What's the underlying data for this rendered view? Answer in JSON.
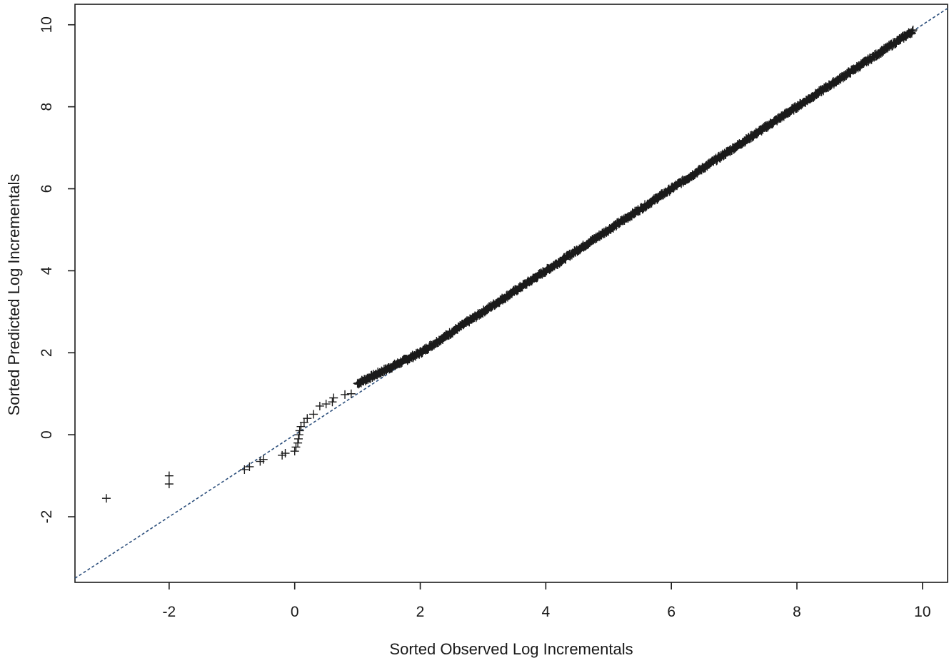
{
  "chart_data": {
    "type": "scatter",
    "title": "",
    "xlabel": "Sorted Observed Log Incrementals",
    "ylabel": "Sorted Predicted Log Incrementals",
    "xlim": [
      -3.5,
      10.4
    ],
    "ylim": [
      -3.6,
      10.5
    ],
    "xticks": [
      -2,
      0,
      2,
      4,
      6,
      8,
      10
    ],
    "yticks": [
      -2,
      0,
      2,
      4,
      6,
      8,
      10
    ],
    "xtick_labels": [
      "-2",
      "0",
      "2",
      "4",
      "6",
      "8",
      "10"
    ],
    "ytick_labels": [
      "-2",
      "0",
      "2",
      "4",
      "6",
      "8",
      "10"
    ],
    "grid": false,
    "marker": "+",
    "reference_line": {
      "slope": 1,
      "intercept": 0,
      "style": "dashed",
      "color": "#2c4f7c"
    },
    "points": {
      "explicit": [
        [
          -3.0,
          -1.55
        ],
        [
          -2.0,
          -1.0
        ],
        [
          -2.0,
          -1.2
        ],
        [
          -0.8,
          -0.85
        ],
        [
          -0.72,
          -0.78
        ],
        [
          -0.55,
          -0.65
        ],
        [
          -0.5,
          -0.6
        ],
        [
          -0.2,
          -0.5
        ],
        [
          -0.15,
          -0.45
        ],
        [
          0.0,
          -0.4
        ],
        [
          0.02,
          -0.3
        ],
        [
          0.05,
          -0.2
        ],
        [
          0.06,
          -0.1
        ],
        [
          0.07,
          0.0
        ],
        [
          0.08,
          0.1
        ],
        [
          0.1,
          0.2
        ],
        [
          0.15,
          0.3
        ],
        [
          0.2,
          0.4
        ],
        [
          0.3,
          0.5
        ],
        [
          0.4,
          0.7
        ],
        [
          0.5,
          0.75
        ],
        [
          0.6,
          0.8
        ],
        [
          0.62,
          0.9
        ],
        [
          0.8,
          0.98
        ],
        [
          0.9,
          1.0
        ]
      ],
      "dense_range": {
        "x_from": 1.0,
        "x_to": 9.85,
        "count": 900,
        "y_offset_at_start": 0.25,
        "y_offset_end_x": 2.0
      }
    }
  }
}
